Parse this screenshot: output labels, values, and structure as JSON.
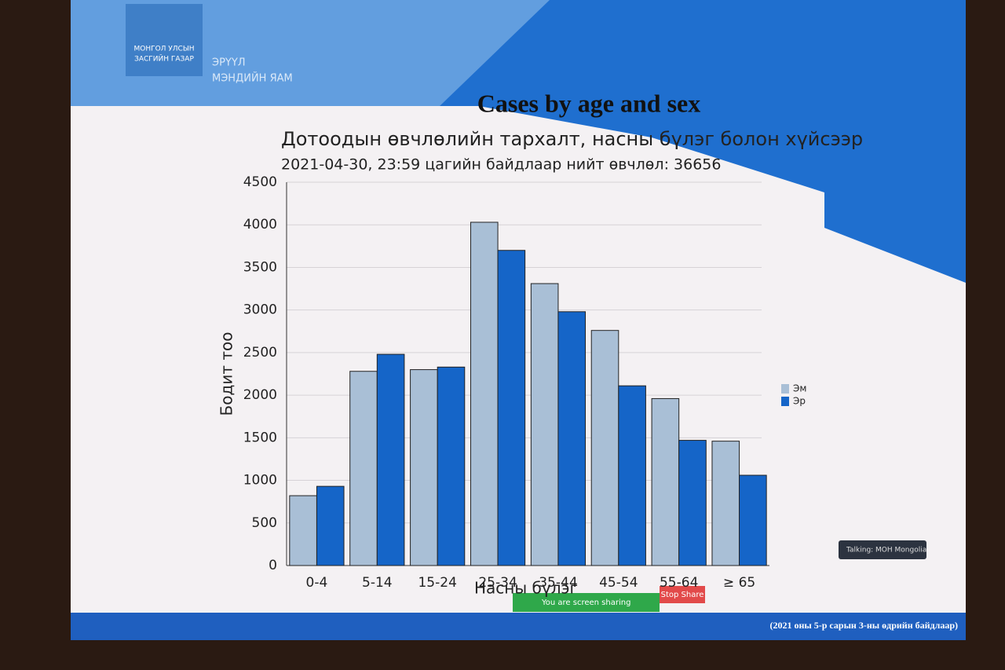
{
  "slide": {
    "logo_line1": "МОНГОЛ УЛСЫН",
    "logo_line2": "ЗАСГИЙН ГАЗАР",
    "ministry_line1": "ЭРҮҮЛ",
    "ministry_line2": "МЭНДИЙН ЯАМ",
    "heading": "Cases by age and sex",
    "footer": "(2021 оны 5-р сарын 3-ны өдрийн байдлаар)",
    "talking": "Talking: MOH Mongolia",
    "sharing": "You are screen sharing",
    "stop_share": "Stop Share"
  },
  "chart_data": {
    "type": "bar",
    "title": "Дотоодын өвчлөлийн тархалт, насны бүлэг болон хүйсээр",
    "subtitle": "2021-04-30, 23:59 цагийн байдлаар нийт өвчлөл: 36656",
    "x_label": "Насны бүлэг",
    "y_label": "Бодит тоо",
    "categories": [
      "0-4",
      "5-14",
      "15-24",
      "25-34",
      "35-44",
      "45-54",
      "55-64",
      "≥ 65"
    ],
    "series": [
      {
        "name": "Эм",
        "color": "#a9bfd6",
        "values": [
          820,
          2280,
          2300,
          4030,
          3310,
          2760,
          1960,
          1460
        ]
      },
      {
        "name": "Эр",
        "color": "#1565c8",
        "values": [
          930,
          2480,
          2330,
          3700,
          2980,
          2110,
          1470,
          1060
        ]
      }
    ],
    "ylim": [
      0,
      4500
    ],
    "yticks": [
      0,
      500,
      1000,
      1500,
      2000,
      2500,
      3000,
      3500,
      4000,
      4500
    ],
    "grid": true,
    "legend": "right"
  }
}
